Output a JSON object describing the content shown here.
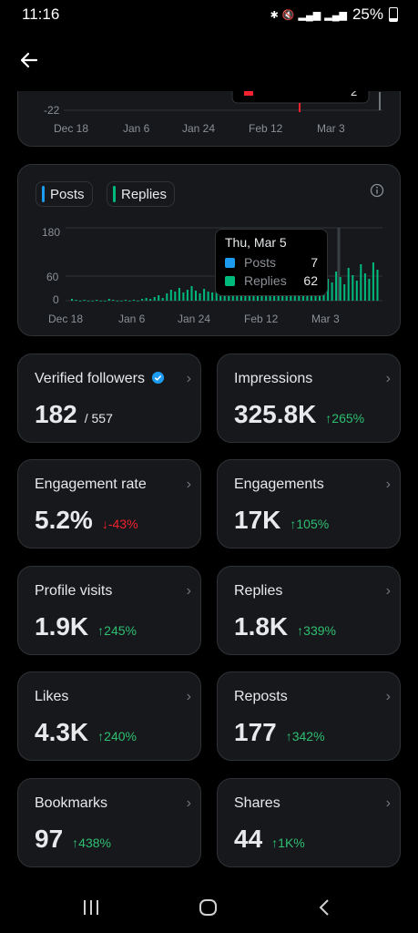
{
  "status": {
    "time": "11:16",
    "battery": "25%"
  },
  "top_chart": {
    "y_tick": "-22",
    "x_ticks": [
      "Dec 18",
      "Jan 6",
      "Jan 24",
      "Feb 12",
      "Mar 3"
    ],
    "tooltip_value": "2"
  },
  "activity_chart": {
    "legend": [
      "Posts",
      "Replies"
    ],
    "colors": {
      "posts": "#1d9bf0",
      "replies": "#00ba7c"
    },
    "y_ticks": [
      "180",
      "60",
      "0"
    ],
    "x_ticks": [
      "Dec 18",
      "Jan 6",
      "Jan 24",
      "Feb 12",
      "Mar 3"
    ],
    "tooltip": {
      "date": "Thu, Mar 5",
      "rows": [
        {
          "label": "Posts",
          "value": "7"
        },
        {
          "label": "Replies",
          "value": "62"
        }
      ]
    }
  },
  "stats": [
    {
      "label": "Verified followers",
      "value": "182",
      "sub": "/ 557",
      "change": "",
      "dir": "",
      "verified": true
    },
    {
      "label": "Impressions",
      "value": "325.8K",
      "sub": "",
      "change": "265%",
      "dir": "up"
    },
    {
      "label": "Engagement rate",
      "value": "5.2%",
      "sub": "",
      "change": "-43%",
      "dir": "down"
    },
    {
      "label": "Engagements",
      "value": "17K",
      "sub": "",
      "change": "105%",
      "dir": "up"
    },
    {
      "label": "Profile visits",
      "value": "1.9K",
      "sub": "",
      "change": "245%",
      "dir": "up"
    },
    {
      "label": "Replies",
      "value": "1.8K",
      "sub": "",
      "change": "339%",
      "dir": "up"
    },
    {
      "label": "Likes",
      "value": "4.3K",
      "sub": "",
      "change": "240%",
      "dir": "up"
    },
    {
      "label": "Reposts",
      "value": "177",
      "sub": "",
      "change": "342%",
      "dir": "up"
    },
    {
      "label": "Bookmarks",
      "value": "97",
      "sub": "",
      "change": "438%",
      "dir": "up"
    },
    {
      "label": "Shares",
      "value": "44",
      "sub": "",
      "change": "1K%",
      "dir": "up"
    }
  ]
}
